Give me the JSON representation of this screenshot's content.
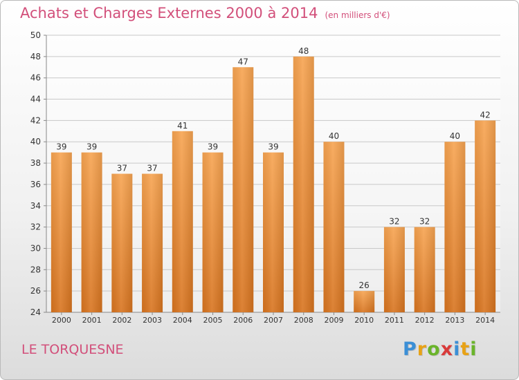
{
  "header": {
    "title": "Achats et Charges Externes 2000 à 2014",
    "subtitle": "(en milliers d'€)"
  },
  "footer": {
    "commune": "LE TORQUESNE",
    "logo": "Proxiti"
  },
  "colors": {
    "title": "#d24f7a",
    "bar_top": "#f7a451",
    "bar_bottom": "#d8741f",
    "grid": "#c8c8c8",
    "logo": [
      "#3b8fd6",
      "#e8a216",
      "#6ab42a",
      "#d93a3a",
      "#3b8fd6",
      "#e8a216",
      "#6ab42a"
    ]
  },
  "chart_data": {
    "type": "bar",
    "categories": [
      "2000",
      "2001",
      "2002",
      "2003",
      "2004",
      "2005",
      "2006",
      "2007",
      "2008",
      "2009",
      "2010",
      "2011",
      "2012",
      "2013",
      "2014"
    ],
    "values": [
      39,
      39,
      37,
      37,
      41,
      39,
      47,
      39,
      48,
      40,
      26,
      32,
      32,
      40,
      42
    ],
    "title": "Achats et Charges Externes 2000 à 2014",
    "ylim": [
      24,
      50
    ],
    "yticks": [
      24,
      26,
      28,
      30,
      32,
      34,
      36,
      38,
      40,
      42,
      44,
      46,
      48,
      50
    ],
    "grid": true,
    "data_labels": true
  }
}
